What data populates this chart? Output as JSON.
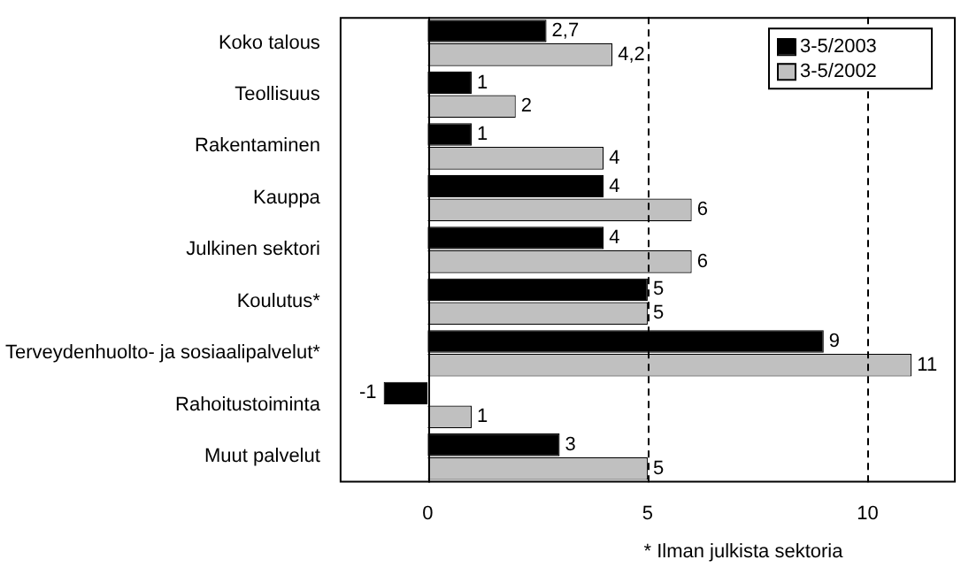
{
  "chart_data": {
    "type": "bar",
    "orientation": "horizontal",
    "categories": [
      "Koko talous",
      "Teollisuus",
      "Rakentaminen",
      "Kauppa",
      "Julkinen sektori",
      "Koulutus*",
      "Terveydenhuolto- ja sosiaalipalvelut*",
      "Rahoitustoiminta",
      "Muut palvelut"
    ],
    "series": [
      {
        "name": "3-5/2003",
        "color": "#000000",
        "values": [
          2.7,
          1,
          1,
          4,
          4,
          5,
          9,
          -1,
          3
        ],
        "value_labels": [
          "2,7",
          "1",
          "1",
          "4",
          "4",
          "5",
          "9",
          "-1",
          "3"
        ]
      },
      {
        "name": "3-5/2002",
        "color": "#c0c0c0",
        "values": [
          4.2,
          2,
          4,
          6,
          6,
          5,
          11,
          1,
          5
        ],
        "value_labels": [
          "4,2",
          "2",
          "4",
          "6",
          "6",
          "5",
          "11",
          "1",
          "5"
        ]
      }
    ],
    "xlim": [
      -2,
      12
    ],
    "xticks": [
      0,
      5,
      10
    ],
    "grid": "x",
    "line_style": "dashed",
    "legend": "top right",
    "annotations": [
      "* Ilman julkista sektoria"
    ]
  }
}
